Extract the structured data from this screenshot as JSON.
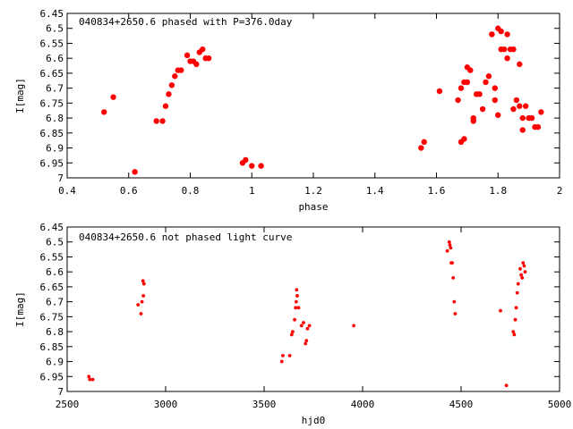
{
  "chart_data": [
    {
      "type": "scatter",
      "title": "040834+2650.6 phased with P=376.0day",
      "xlabel": "phase",
      "ylabel": "I[mag]",
      "xlim": [
        0.4,
        2
      ],
      "ylim": [
        7,
        6.45
      ],
      "y_inverted": true,
      "xticks": [
        0.4,
        0.6,
        0.8,
        1,
        1.2,
        1.4,
        1.6,
        1.8,
        2
      ],
      "xtick_labels": [
        "0.4",
        "0.6",
        "0.8",
        "1",
        "1.2",
        "1.4",
        "1.6",
        "1.8",
        "2"
      ],
      "yticks": [
        6.45,
        6.5,
        6.55,
        6.6,
        6.65,
        6.7,
        6.75,
        6.8,
        6.85,
        6.9,
        6.95,
        7
      ],
      "ytick_labels": [
        "6.45",
        "6.5",
        "6.55",
        "6.6",
        "6.65",
        "6.7",
        "6.75",
        "6.8",
        "6.85",
        "6.9",
        "6.95",
        "7"
      ],
      "marker_color": "#ff0000",
      "points": [
        [
          0.52,
          6.78
        ],
        [
          0.55,
          6.73
        ],
        [
          0.62,
          6.98
        ],
        [
          0.69,
          6.81
        ],
        [
          0.71,
          6.81
        ],
        [
          0.72,
          6.76
        ],
        [
          0.73,
          6.72
        ],
        [
          0.74,
          6.69
        ],
        [
          0.75,
          6.66
        ],
        [
          0.76,
          6.64
        ],
        [
          0.77,
          6.64
        ],
        [
          0.79,
          6.59
        ],
        [
          0.8,
          6.61
        ],
        [
          0.81,
          6.61
        ],
        [
          0.82,
          6.62
        ],
        [
          0.83,
          6.58
        ],
        [
          0.84,
          6.57
        ],
        [
          0.85,
          6.6
        ],
        [
          0.86,
          6.6
        ],
        [
          0.97,
          6.95
        ],
        [
          0.98,
          6.94
        ],
        [
          1.0,
          6.96
        ],
        [
          1.03,
          6.96
        ],
        [
          1.55,
          6.9
        ],
        [
          1.56,
          6.88
        ],
        [
          1.61,
          6.71
        ],
        [
          1.67,
          6.74
        ],
        [
          1.68,
          6.88
        ],
        [
          1.68,
          6.7
        ],
        [
          1.69,
          6.87
        ],
        [
          1.69,
          6.68
        ],
        [
          1.7,
          6.63
        ],
        [
          1.7,
          6.68
        ],
        [
          1.71,
          6.64
        ],
        [
          1.72,
          6.8
        ],
        [
          1.72,
          6.81
        ],
        [
          1.73,
          6.72
        ],
        [
          1.74,
          6.72
        ],
        [
          1.75,
          6.77
        ],
        [
          1.76,
          6.68
        ],
        [
          1.77,
          6.66
        ],
        [
          1.78,
          6.52
        ],
        [
          1.78,
          6.52
        ],
        [
          1.79,
          6.7
        ],
        [
          1.79,
          6.74
        ],
        [
          1.8,
          6.5
        ],
        [
          1.8,
          6.79
        ],
        [
          1.81,
          6.51
        ],
        [
          1.81,
          6.57
        ],
        [
          1.82,
          6.57
        ],
        [
          1.83,
          6.52
        ],
        [
          1.83,
          6.6
        ],
        [
          1.84,
          6.57
        ],
        [
          1.85,
          6.57
        ],
        [
          1.85,
          6.77
        ],
        [
          1.86,
          6.74
        ],
        [
          1.87,
          6.62
        ],
        [
          1.87,
          6.76
        ],
        [
          1.88,
          6.8
        ],
        [
          1.88,
          6.84
        ],
        [
          1.89,
          6.76
        ],
        [
          1.9,
          6.8
        ],
        [
          1.91,
          6.8
        ],
        [
          1.92,
          6.83
        ],
        [
          1.93,
          6.83
        ],
        [
          1.94,
          6.78
        ]
      ]
    },
    {
      "type": "scatter",
      "title": "040834+2650.6 not phased light curve",
      "xlabel": "hjd0",
      "ylabel": "I[mag]",
      "xlim": [
        2500,
        5000
      ],
      "ylim": [
        7,
        6.45
      ],
      "y_inverted": true,
      "xticks": [
        2500,
        3000,
        3500,
        4000,
        4500,
        5000
      ],
      "xtick_labels": [
        "2500",
        "3000",
        "3500",
        "4000",
        "4500",
        "5000"
      ],
      "yticks": [
        6.45,
        6.5,
        6.55,
        6.6,
        6.65,
        6.7,
        6.75,
        6.8,
        6.85,
        6.9,
        6.95,
        7
      ],
      "ytick_labels": [
        "6.45",
        "6.5",
        "6.55",
        "6.6",
        "6.65",
        "6.7",
        "6.75",
        "6.8",
        "6.85",
        "6.9",
        "6.95",
        "7"
      ],
      "marker_color": "#ff0000",
      "points": [
        [
          2610,
          6.95
        ],
        [
          2615,
          6.96
        ],
        [
          2630,
          6.96
        ],
        [
          2860,
          6.71
        ],
        [
          2875,
          6.74
        ],
        [
          2880,
          6.7
        ],
        [
          2885,
          6.63
        ],
        [
          2887,
          6.68
        ],
        [
          2890,
          6.64
        ],
        [
          3590,
          6.9
        ],
        [
          3595,
          6.88
        ],
        [
          3630,
          6.88
        ],
        [
          3640,
          6.81
        ],
        [
          3645,
          6.8
        ],
        [
          3655,
          6.76
        ],
        [
          3660,
          6.72
        ],
        [
          3663,
          6.7
        ],
        [
          3665,
          6.66
        ],
        [
          3668,
          6.68
        ],
        [
          3675,
          6.72
        ],
        [
          3690,
          6.78
        ],
        [
          3700,
          6.77
        ],
        [
          3710,
          6.84
        ],
        [
          3715,
          6.83
        ],
        [
          3720,
          6.79
        ],
        [
          3730,
          6.78
        ],
        [
          3955,
          6.78
        ],
        [
          4430,
          6.53
        ],
        [
          4440,
          6.5
        ],
        [
          4443,
          6.51
        ],
        [
          4447,
          6.52
        ],
        [
          4450,
          6.57
        ],
        [
          4455,
          6.57
        ],
        [
          4460,
          6.62
        ],
        [
          4465,
          6.7
        ],
        [
          4470,
          6.74
        ],
        [
          4700,
          6.73
        ],
        [
          4730,
          6.98
        ],
        [
          4765,
          6.8
        ],
        [
          4770,
          6.81
        ],
        [
          4775,
          6.76
        ],
        [
          4780,
          6.72
        ],
        [
          4785,
          6.67
        ],
        [
          4790,
          6.64
        ],
        [
          4800,
          6.59
        ],
        [
          4805,
          6.61
        ],
        [
          4810,
          6.62
        ],
        [
          4815,
          6.57
        ],
        [
          4820,
          6.58
        ],
        [
          4825,
          6.6
        ]
      ]
    }
  ]
}
